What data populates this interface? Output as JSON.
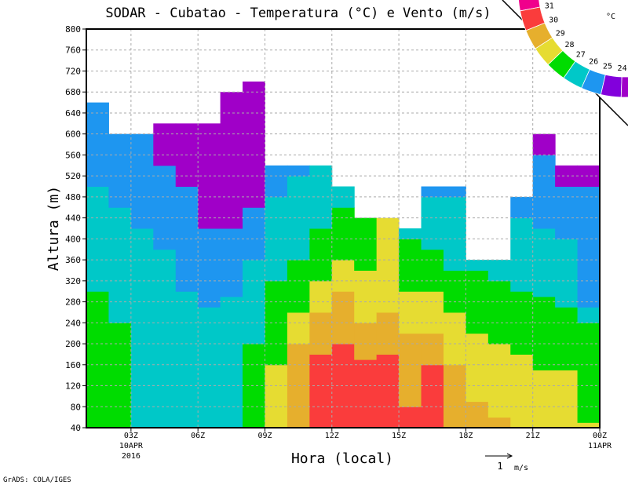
{
  "chart_data": {
    "type": "heatmap",
    "title": "SODAR  -  Cubatao  -  Temperatura (°C) e Vento (m/s)",
    "xlabel": "Hora (local)",
    "ylabel": "Altura (m)",
    "xlim": [
      1,
      24
    ],
    "ylim": [
      40,
      800
    ],
    "grid": true,
    "yticks": [
      40,
      80,
      120,
      160,
      200,
      240,
      280,
      320,
      360,
      400,
      440,
      480,
      520,
      560,
      600,
      640,
      680,
      720,
      760,
      800
    ],
    "xticks": [
      {
        "hour": 3,
        "label": "03Z",
        "sub1": "10APR",
        "sub2": "2016"
      },
      {
        "hour": 6,
        "label": "06Z"
      },
      {
        "hour": 9,
        "label": "09Z"
      },
      {
        "hour": 12,
        "label": "12Z"
      },
      {
        "hour": 15,
        "label": "15Z"
      },
      {
        "hour": 18,
        "label": "18Z"
      },
      {
        "hour": 21,
        "label": "21Z"
      },
      {
        "hour": 24,
        "label": "00Z",
        "sub1": "11APR"
      }
    ],
    "legend": {
      "unit": "°C",
      "placement": "top-right",
      "classes": [
        {
          "min": 31,
          "color": "#f0008c"
        },
        {
          "min": 30,
          "color": "#fa3c3c"
        },
        {
          "min": 29,
          "color": "#e6af2d"
        },
        {
          "min": 28,
          "color": "#e6dc32"
        },
        {
          "min": 27,
          "color": "#00dc00"
        },
        {
          "min": 26,
          "color": "#00c8c8"
        },
        {
          "min": 25,
          "color": "#1e96f0"
        },
        {
          "min": 24,
          "color": "#8200dc"
        },
        {
          "min": 23,
          "color": "#a000c8"
        }
      ],
      "labels": [
        "31",
        "30",
        "29",
        "28",
        "27",
        "26",
        "25",
        "24"
      ]
    },
    "columns": [
      {
        "hour": 1,
        "layers": [
          [
            27,
            300
          ],
          [
            26,
            500
          ],
          [
            25,
            660
          ]
        ]
      },
      {
        "hour": 2,
        "layers": [
          [
            27,
            240
          ],
          [
            26,
            460
          ],
          [
            25,
            600
          ]
        ]
      },
      {
        "hour": 3,
        "layers": [
          [
            26,
            420
          ],
          [
            25,
            600
          ]
        ]
      },
      {
        "hour": 4,
        "layers": [
          [
            26,
            380
          ],
          [
            25,
            540
          ],
          [
            23,
            620
          ]
        ]
      },
      {
        "hour": 5,
        "layers": [
          [
            26,
            300
          ],
          [
            25,
            500
          ],
          [
            23,
            620
          ]
        ]
      },
      {
        "hour": 6,
        "layers": [
          [
            26,
            270
          ],
          [
            25,
            420
          ],
          [
            23,
            620
          ]
        ]
      },
      {
        "hour": 7,
        "layers": [
          [
            26,
            290
          ],
          [
            25,
            420
          ],
          [
            23,
            680
          ]
        ]
      },
      {
        "hour": 8,
        "layers": [
          [
            27,
            200
          ],
          [
            26,
            360
          ],
          [
            25,
            460
          ],
          [
            23,
            700
          ]
        ]
      },
      {
        "hour": 9,
        "layers": [
          [
            28,
            160
          ],
          [
            27,
            320
          ],
          [
            26,
            480
          ],
          [
            25,
            540
          ]
        ]
      },
      {
        "hour": 10,
        "layers": [
          [
            29,
            200
          ],
          [
            28,
            260
          ],
          [
            27,
            360
          ],
          [
            26,
            520
          ],
          [
            25,
            540
          ]
        ]
      },
      {
        "hour": 11,
        "layers": [
          [
            30,
            180
          ],
          [
            29,
            260
          ],
          [
            28,
            320
          ],
          [
            27,
            420
          ],
          [
            26,
            540
          ]
        ]
      },
      {
        "hour": 12,
        "layers": [
          [
            30,
            200
          ],
          [
            29,
            300
          ],
          [
            28,
            360
          ],
          [
            27,
            460
          ],
          [
            26,
            500
          ]
        ]
      },
      {
        "hour": 13,
        "layers": [
          [
            30,
            170
          ],
          [
            29,
            240
          ],
          [
            28,
            340
          ],
          [
            27,
            440
          ]
        ]
      },
      {
        "hour": 14,
        "layers": [
          [
            30,
            180
          ],
          [
            29,
            260
          ],
          [
            28,
            440
          ]
        ]
      },
      {
        "hour": 15,
        "layers": [
          [
            30,
            80
          ],
          [
            29,
            220
          ],
          [
            28,
            300
          ],
          [
            27,
            400
          ],
          [
            26,
            420
          ]
        ]
      },
      {
        "hour": 16,
        "layers": [
          [
            30,
            160
          ],
          [
            29,
            220
          ],
          [
            28,
            300
          ],
          [
            27,
            380
          ],
          [
            26,
            480
          ],
          [
            25,
            500
          ]
        ]
      },
      {
        "hour": 17,
        "layers": [
          [
            29,
            160
          ],
          [
            28,
            260
          ],
          [
            27,
            340
          ],
          [
            26,
            480
          ],
          [
            25,
            500
          ]
        ]
      },
      {
        "hour": 18,
        "layers": [
          [
            29,
            90
          ],
          [
            28,
            220
          ],
          [
            27,
            340
          ],
          [
            26,
            360
          ]
        ]
      },
      {
        "hour": 19,
        "layers": [
          [
            29,
            60
          ],
          [
            28,
            200
          ],
          [
            27,
            320
          ],
          [
            26,
            360
          ]
        ]
      },
      {
        "hour": 20,
        "layers": [
          [
            28,
            180
          ],
          [
            27,
            300
          ],
          [
            26,
            440
          ],
          [
            25,
            480
          ]
        ]
      },
      {
        "hour": 21,
        "layers": [
          [
            28,
            150
          ],
          [
            27,
            290
          ],
          [
            26,
            420
          ],
          [
            25,
            560
          ],
          [
            23,
            600
          ]
        ]
      },
      {
        "hour": 22,
        "layers": [
          [
            28,
            150
          ],
          [
            27,
            270
          ],
          [
            26,
            400
          ],
          [
            25,
            500
          ],
          [
            23,
            540
          ]
        ]
      },
      {
        "hour": 23,
        "layers": [
          [
            28,
            50
          ],
          [
            27,
            240
          ],
          [
            26,
            270
          ],
          [
            25,
            500
          ],
          [
            23,
            540
          ]
        ]
      }
    ],
    "vector_reference": {
      "value": "1",
      "unit": "m/s"
    }
  },
  "footer": "GrADS: COLA/IGES"
}
